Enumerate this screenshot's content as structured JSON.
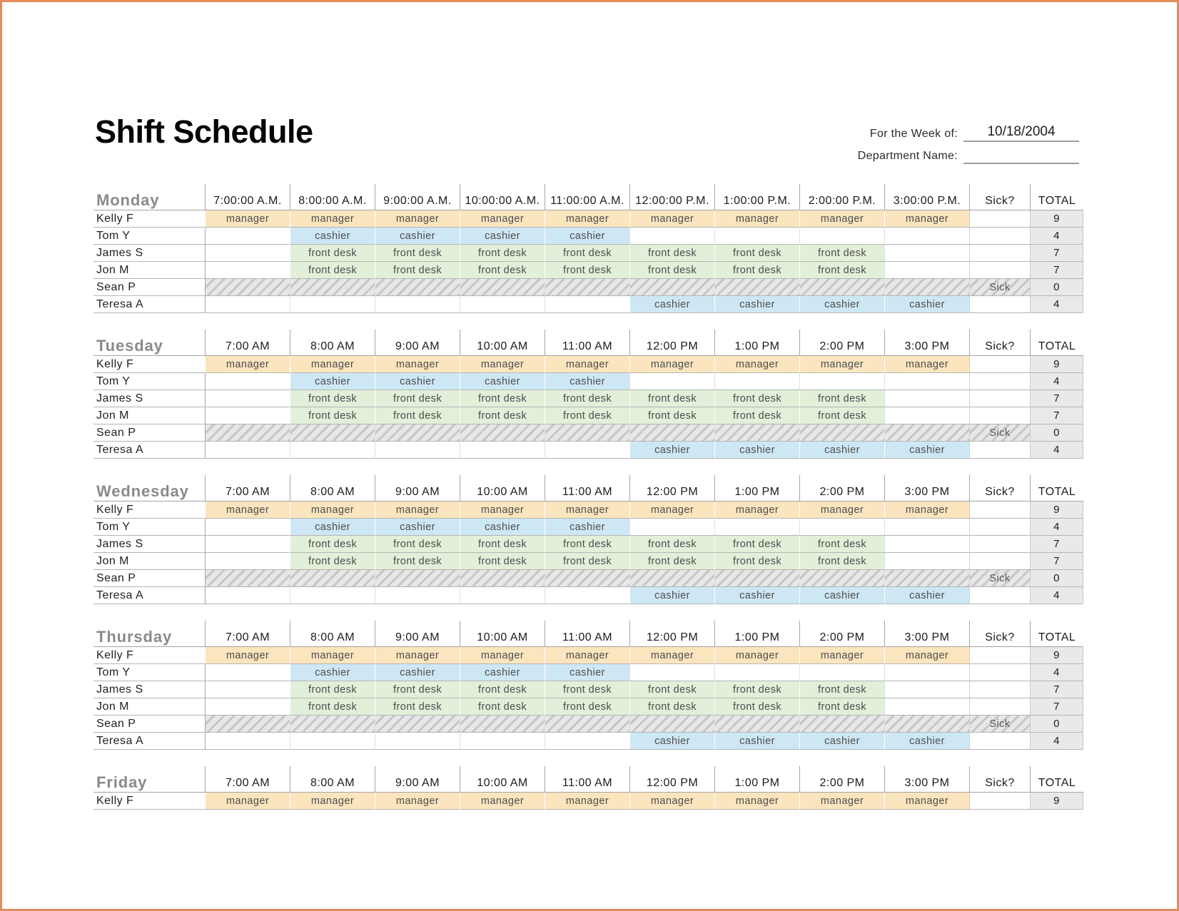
{
  "page": {
    "title": "Shift Schedule",
    "fields": {
      "week_label": "For the Week of:",
      "week_value": "10/18/2004",
      "department_label": "Department Name:",
      "department_value": ""
    }
  },
  "colors": {
    "page_border": "#E08C5B",
    "manager": "#FBE5BE",
    "cashier": "#CEE7F5",
    "front-desk": "#E2EFD9",
    "total_bg": "#E9E9E9",
    "day_label": "#8A8A8A"
  },
  "schedule": {
    "sick_header": "Sick?",
    "total_header": "TOTAL",
    "roles": [
      "manager",
      "cashier",
      "front desk"
    ],
    "days": [
      {
        "name": "Monday",
        "times": [
          "7:00:00 A.M.",
          "8:00:00 A.M.",
          "9:00:00 A.M.",
          "10:00:00 A.M.",
          "11:00:00 A.M.",
          "12:00:00 P.M.",
          "1:00:00 P.M.",
          "2:00:00 P.M.",
          "3:00:00 P.M."
        ],
        "rows": [
          {
            "employee": "Kelly F",
            "shifts": [
              "manager",
              "manager",
              "manager",
              "manager",
              "manager",
              "manager",
              "manager",
              "manager",
              "manager"
            ],
            "sick": "",
            "total": "9",
            "hatched": false
          },
          {
            "employee": "Tom Y",
            "shifts": [
              "",
              "cashier",
              "cashier",
              "cashier",
              "cashier",
              "",
              "",
              "",
              ""
            ],
            "sick": "",
            "total": "4",
            "hatched": false
          },
          {
            "employee": "James S",
            "shifts": [
              "",
              "front desk",
              "front desk",
              "front desk",
              "front desk",
              "front desk",
              "front desk",
              "front desk",
              ""
            ],
            "sick": "",
            "total": "7",
            "hatched": false
          },
          {
            "employee": "Jon M",
            "shifts": [
              "",
              "front desk",
              "front desk",
              "front desk",
              "front desk",
              "front desk",
              "front desk",
              "front desk",
              ""
            ],
            "sick": "",
            "total": "7",
            "hatched": false
          },
          {
            "employee": "Sean P",
            "shifts": [
              "",
              "",
              "",
              "",
              "",
              "",
              "",
              "",
              ""
            ],
            "sick": "Sick",
            "total": "0",
            "hatched": true
          },
          {
            "employee": "Teresa A",
            "shifts": [
              "",
              "",
              "",
              "",
              "",
              "cashier",
              "cashier",
              "cashier",
              "cashier"
            ],
            "sick": "",
            "total": "4",
            "hatched": false
          }
        ]
      },
      {
        "name": "Tuesday",
        "times": [
          "7:00 AM",
          "8:00 AM",
          "9:00 AM",
          "10:00 AM",
          "11:00 AM",
          "12:00 PM",
          "1:00 PM",
          "2:00 PM",
          "3:00 PM"
        ],
        "rows": [
          {
            "employee": "Kelly F",
            "shifts": [
              "manager",
              "manager",
              "manager",
              "manager",
              "manager",
              "manager",
              "manager",
              "manager",
              "manager"
            ],
            "sick": "",
            "total": "9",
            "hatched": false
          },
          {
            "employee": "Tom Y",
            "shifts": [
              "",
              "cashier",
              "cashier",
              "cashier",
              "cashier",
              "",
              "",
              "",
              ""
            ],
            "sick": "",
            "total": "4",
            "hatched": false
          },
          {
            "employee": "James S",
            "shifts": [
              "",
              "front desk",
              "front desk",
              "front desk",
              "front desk",
              "front desk",
              "front desk",
              "front desk",
              ""
            ],
            "sick": "",
            "total": "7",
            "hatched": false
          },
          {
            "employee": "Jon M",
            "shifts": [
              "",
              "front desk",
              "front desk",
              "front desk",
              "front desk",
              "front desk",
              "front desk",
              "front desk",
              ""
            ],
            "sick": "",
            "total": "7",
            "hatched": false
          },
          {
            "employee": "Sean P",
            "shifts": [
              "",
              "",
              "",
              "",
              "",
              "",
              "",
              "",
              ""
            ],
            "sick": "Sick",
            "total": "0",
            "hatched": true
          },
          {
            "employee": "Teresa A",
            "shifts": [
              "",
              "",
              "",
              "",
              "",
              "cashier",
              "cashier",
              "cashier",
              "cashier"
            ],
            "sick": "",
            "total": "4",
            "hatched": false
          }
        ]
      },
      {
        "name": "Wednesday",
        "times": [
          "7:00 AM",
          "8:00 AM",
          "9:00 AM",
          "10:00 AM",
          "11:00 AM",
          "12:00 PM",
          "1:00 PM",
          "2:00 PM",
          "3:00 PM"
        ],
        "rows": [
          {
            "employee": "Kelly F",
            "shifts": [
              "manager",
              "manager",
              "manager",
              "manager",
              "manager",
              "manager",
              "manager",
              "manager",
              "manager"
            ],
            "sick": "",
            "total": "9",
            "hatched": false
          },
          {
            "employee": "Tom Y",
            "shifts": [
              "",
              "cashier",
              "cashier",
              "cashier",
              "cashier",
              "",
              "",
              "",
              ""
            ],
            "sick": "",
            "total": "4",
            "hatched": false
          },
          {
            "employee": "James S",
            "shifts": [
              "",
              "front desk",
              "front desk",
              "front desk",
              "front desk",
              "front desk",
              "front desk",
              "front desk",
              ""
            ],
            "sick": "",
            "total": "7",
            "hatched": false
          },
          {
            "employee": "Jon M",
            "shifts": [
              "",
              "front desk",
              "front desk",
              "front desk",
              "front desk",
              "front desk",
              "front desk",
              "front desk",
              ""
            ],
            "sick": "",
            "total": "7",
            "hatched": false
          },
          {
            "employee": "Sean P",
            "shifts": [
              "",
              "",
              "",
              "",
              "",
              "",
              "",
              "",
              ""
            ],
            "sick": "Sick",
            "total": "0",
            "hatched": true
          },
          {
            "employee": "Teresa A",
            "shifts": [
              "",
              "",
              "",
              "",
              "",
              "cashier",
              "cashier",
              "cashier",
              "cashier"
            ],
            "sick": "",
            "total": "4",
            "hatched": false
          }
        ]
      },
      {
        "name": "Thursday",
        "times": [
          "7:00 AM",
          "8:00 AM",
          "9:00 AM",
          "10:00 AM",
          "11:00 AM",
          "12:00 PM",
          "1:00 PM",
          "2:00 PM",
          "3:00 PM"
        ],
        "rows": [
          {
            "employee": "Kelly F",
            "shifts": [
              "manager",
              "manager",
              "manager",
              "manager",
              "manager",
              "manager",
              "manager",
              "manager",
              "manager"
            ],
            "sick": "",
            "total": "9",
            "hatched": false
          },
          {
            "employee": "Tom Y",
            "shifts": [
              "",
              "cashier",
              "cashier",
              "cashier",
              "cashier",
              "",
              "",
              "",
              ""
            ],
            "sick": "",
            "total": "4",
            "hatched": false
          },
          {
            "employee": "James S",
            "shifts": [
              "",
              "front desk",
              "front desk",
              "front desk",
              "front desk",
              "front desk",
              "front desk",
              "front desk",
              ""
            ],
            "sick": "",
            "total": "7",
            "hatched": false
          },
          {
            "employee": "Jon M",
            "shifts": [
              "",
              "front desk",
              "front desk",
              "front desk",
              "front desk",
              "front desk",
              "front desk",
              "front desk",
              ""
            ],
            "sick": "",
            "total": "7",
            "hatched": false
          },
          {
            "employee": "Sean P",
            "shifts": [
              "",
              "",
              "",
              "",
              "",
              "",
              "",
              "",
              ""
            ],
            "sick": "Sick",
            "total": "0",
            "hatched": true
          },
          {
            "employee": "Teresa A",
            "shifts": [
              "",
              "",
              "",
              "",
              "",
              "cashier",
              "cashier",
              "cashier",
              "cashier"
            ],
            "sick": "",
            "total": "4",
            "hatched": false
          }
        ]
      },
      {
        "name": "Friday",
        "times": [
          "7:00 AM",
          "8:00 AM",
          "9:00 AM",
          "10:00 AM",
          "11:00 AM",
          "12:00 PM",
          "1:00 PM",
          "2:00 PM",
          "3:00 PM"
        ],
        "rows": [
          {
            "employee": "Kelly F",
            "shifts": [
              "manager",
              "manager",
              "manager",
              "manager",
              "manager",
              "manager",
              "manager",
              "manager",
              "manager"
            ],
            "sick": "",
            "total": "9",
            "hatched": false
          }
        ]
      }
    ]
  }
}
